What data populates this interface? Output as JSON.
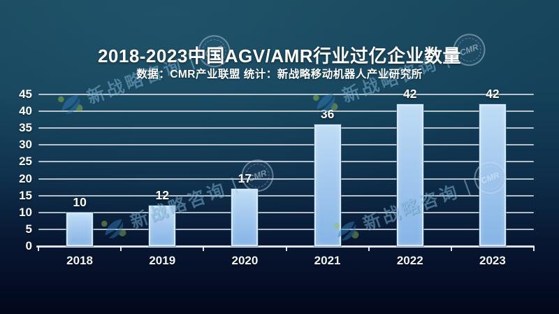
{
  "header": {
    "title": "2018-2023中国AGV/AMR行业过亿企业数量",
    "subtitle": "数据：CMR产业联盟  统计：新战略移动机器人产业研究所"
  },
  "chart_data": {
    "type": "bar",
    "title": "2018-2023中国AGV/AMR行业过亿企业数量",
    "categories": [
      "2018",
      "2019",
      "2020",
      "2021",
      "2022",
      "2023"
    ],
    "values": [
      10,
      12,
      17,
      36,
      42,
      42
    ],
    "xlabel": "",
    "ylabel": "",
    "ylim": [
      0,
      45
    ],
    "yticks": [
      0,
      5,
      10,
      15,
      20,
      25,
      30,
      35,
      40,
      45
    ],
    "grid": true,
    "legend": "none",
    "bar_color_top": "#bedcf5",
    "bar_color_bottom": "#86b4e6",
    "bar_border_color": "#d6eafb",
    "gridline_color": "#e4e9ed",
    "label_color": "#ffffff"
  },
  "watermark": {
    "brand_text": "新战略咨询",
    "separator": "|",
    "badge_label": "CMR",
    "text_color": "#7fb7da",
    "ribbon_blue": "#2f7cb5",
    "dot_green": "#9cc24a"
  },
  "colors": {
    "background_top": "#18465b",
    "background_bottom": "#03081b",
    "title_color": "#ffffff"
  }
}
